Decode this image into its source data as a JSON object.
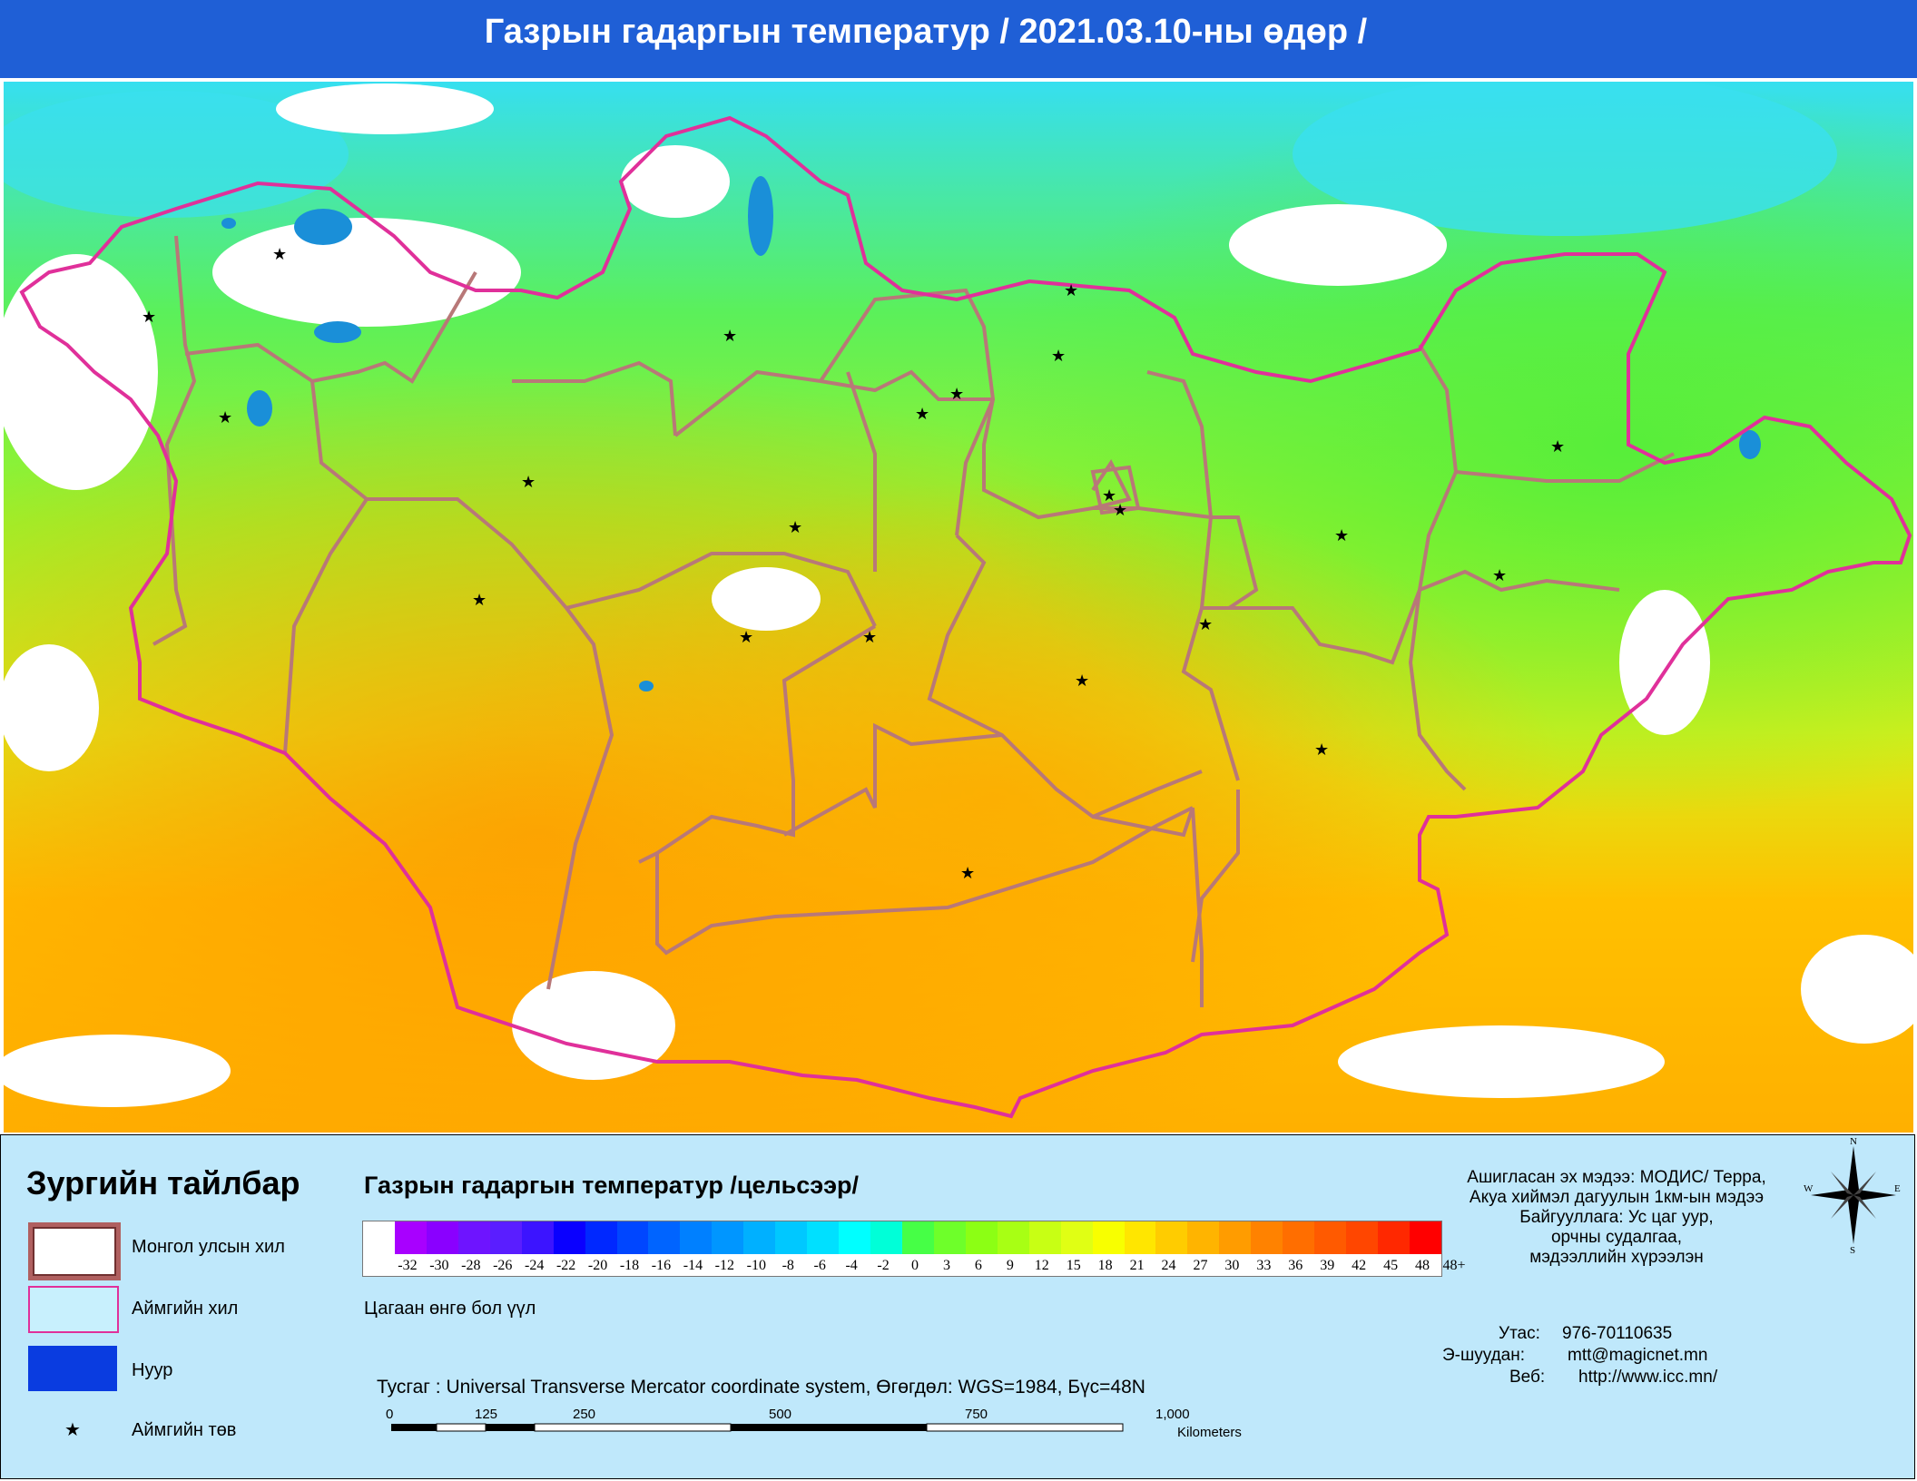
{
  "header": {
    "title": "Газрын гадаргын температур / 2021.03.10-ны өдөр /"
  },
  "map": {
    "features": {
      "country_border_color": "#e0309a",
      "province_border_color": "#b87878",
      "lake_color": "#1a8fd8"
    },
    "province_center_symbol": "star-icon"
  },
  "legend": {
    "title": "Зургийн тайлбар",
    "items": [
      {
        "label": "Монгол улсын хил",
        "symbol": "country-border-swatch"
      },
      {
        "label": "Аймгийн хил",
        "symbol": "province-border-swatch"
      },
      {
        "label": "Нуур",
        "symbol": "lake-swatch"
      },
      {
        "label": "Аймгийн төв",
        "symbol": "star-icon"
      }
    ]
  },
  "colorbar": {
    "title": "Газрын гадаргын температур /цельсээр/",
    "ticks": [
      "-32",
      "-30",
      "-28",
      "-26",
      "-24",
      "-22",
      "-20",
      "-18",
      "-16",
      "-14",
      "-12",
      "-10",
      "-8",
      "-6",
      "-4",
      "-2",
      "0",
      "3",
      "6",
      "9",
      "12",
      "15",
      "18",
      "21",
      "24",
      "27",
      "30",
      "33",
      "36",
      "39",
      "42",
      "45",
      "48",
      "48+"
    ],
    "colors": [
      "#ffffff",
      "#a800ff",
      "#8a00ff",
      "#6e14ff",
      "#5a1eff",
      "#3c14ff",
      "#0a00ff",
      "#0028ff",
      "#0046ff",
      "#0064ff",
      "#0080ff",
      "#0096ff",
      "#00b0ff",
      "#00c8ff",
      "#00e0ff",
      "#00ffff",
      "#00ffd8",
      "#46ff46",
      "#6eff2a",
      "#8cff14",
      "#a8ff14",
      "#c8ff14",
      "#e0ff14",
      "#f8ff00",
      "#ffe600",
      "#ffcc00",
      "#ffb400",
      "#ff9c00",
      "#ff8200",
      "#ff6e00",
      "#ff5a00",
      "#ff4600",
      "#ff2800",
      "#ff0000"
    ],
    "cloud_note": "Цагаан өнгө бол үүл"
  },
  "projection": {
    "text": "Тусгаг : Universal Transverse Mercator coordinate system, Өгөгдөл: WGS=1984, Бүс=48N"
  },
  "scalebar": {
    "labels": [
      "0",
      "125",
      "250",
      "500",
      "750",
      "1,000"
    ],
    "unit": "Kilometers"
  },
  "credits": {
    "lines": [
      "Ашигласан эх мэдээ: МОДИС/ Терра,",
      "Акуа хиймэл дагуулын 1км-ын мэдээ",
      "Байгууллага: Ус цаг уур,",
      "орчны судалгаа,",
      "мэдээллийн хүрээлэн"
    ]
  },
  "compass": {
    "n": "N",
    "e": "E",
    "w": "W",
    "s": "S"
  },
  "contacts": [
    {
      "label": "Утас:",
      "value": "976-70110635"
    },
    {
      "label": "Э-шуудан:",
      "value": "mtt@magicnet.mn"
    },
    {
      "label": "Веб:",
      "value": "http://www.icc.mn/"
    }
  ]
}
